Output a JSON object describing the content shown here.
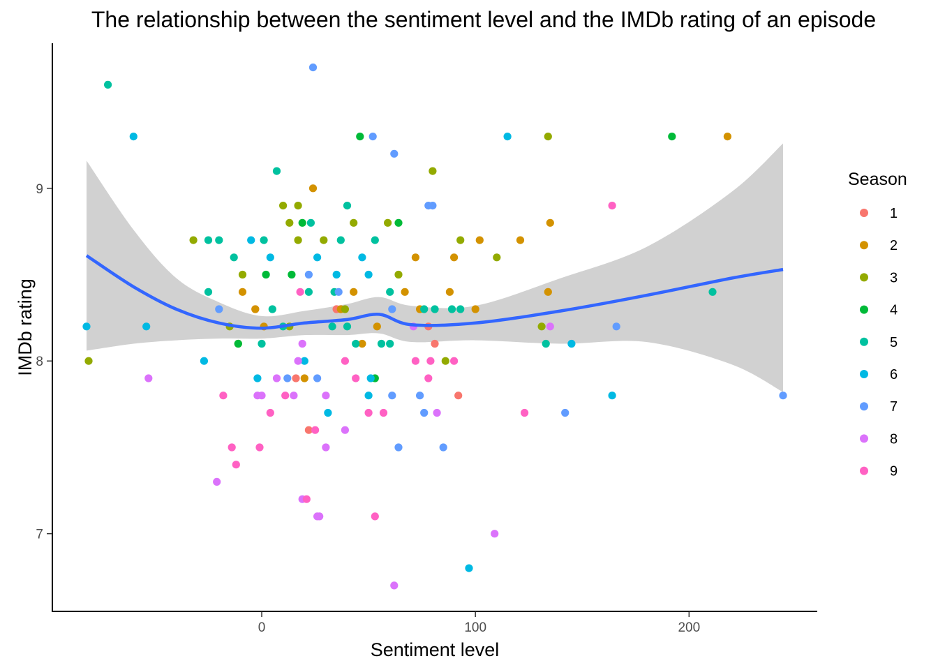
{
  "chart_data": {
    "type": "scatter",
    "title": "The relationship between the sentiment level and the IMDb rating of an episode",
    "xlabel": "Sentiment level",
    "ylabel": "IMDb rating",
    "xlim": [
      -98,
      260
    ],
    "ylim": [
      6.55,
      9.84
    ],
    "x_ticks": [
      0,
      100,
      200
    ],
    "y_ticks": [
      7,
      8,
      9
    ],
    "grid": false,
    "legend": {
      "title": "Season",
      "placement": "right",
      "entries": [
        "1",
        "2",
        "3",
        "4",
        "5",
        "6",
        "7",
        "8",
        "9"
      ]
    },
    "season_colors": {
      "1": "#F8766D",
      "2": "#D39200",
      "3": "#93AA00",
      "4": "#00BA38",
      "5": "#00C19F",
      "6": "#00B9E3",
      "7": "#619CFF",
      "8": "#DB72FB",
      "9": "#FF61C3"
    },
    "series": [
      {
        "name": "1",
        "points": [
          [
            35,
            8.3
          ],
          [
            -3,
            8.3
          ],
          [
            78,
            8.2
          ],
          [
            81,
            8.1
          ],
          [
            16,
            7.9
          ],
          [
            22,
            7.6
          ],
          [
            92,
            7.8
          ],
          [
            35,
            8.3
          ]
        ]
      },
      {
        "name": "2",
        "points": [
          [
            24,
            9.0
          ],
          [
            218,
            9.3
          ],
          [
            135,
            8.8
          ],
          [
            102,
            8.7
          ],
          [
            121,
            8.7
          ],
          [
            72,
            8.6
          ],
          [
            90,
            8.6
          ],
          [
            -9,
            8.4
          ],
          [
            43,
            8.4
          ],
          [
            67,
            8.4
          ],
          [
            88,
            8.4
          ],
          [
            134,
            8.4
          ],
          [
            -3,
            8.3
          ],
          [
            37,
            8.3
          ],
          [
            74,
            8.3
          ],
          [
            100,
            8.3
          ],
          [
            1,
            8.2
          ],
          [
            54,
            8.2
          ],
          [
            47,
            8.1
          ],
          [
            20,
            7.9
          ]
        ]
      },
      {
        "name": "3",
        "points": [
          [
            -81,
            8.0
          ],
          [
            134,
            9.3
          ],
          [
            80,
            9.1
          ],
          [
            10,
            8.9
          ],
          [
            17,
            8.9
          ],
          [
            13,
            8.8
          ],
          [
            43,
            8.8
          ],
          [
            59,
            8.8
          ],
          [
            -32,
            8.7
          ],
          [
            17,
            8.7
          ],
          [
            29,
            8.7
          ],
          [
            93,
            8.7
          ],
          [
            110,
            8.6
          ],
          [
            -9,
            8.5
          ],
          [
            64,
            8.5
          ],
          [
            39,
            8.3
          ],
          [
            -15,
            8.2
          ],
          [
            13,
            8.2
          ],
          [
            131,
            8.2
          ],
          [
            -11,
            8.1
          ],
          [
            86,
            8.0
          ]
        ]
      },
      {
        "name": "4",
        "points": [
          [
            46,
            9.3
          ],
          [
            192,
            9.3
          ],
          [
            19,
            8.8
          ],
          [
            64,
            8.8
          ],
          [
            2,
            8.5
          ],
          [
            14,
            8.5
          ],
          [
            -11,
            8.1
          ],
          [
            53,
            7.9
          ]
        ]
      },
      {
        "name": "5",
        "points": [
          [
            -72,
            9.6
          ],
          [
            7,
            9.1
          ],
          [
            40,
            8.9
          ],
          [
            23,
            8.8
          ],
          [
            -25,
            8.7
          ],
          [
            -20,
            8.7
          ],
          [
            1,
            8.7
          ],
          [
            37,
            8.7
          ],
          [
            53,
            8.7
          ],
          [
            -13,
            8.6
          ],
          [
            -25,
            8.4
          ],
          [
            22,
            8.4
          ],
          [
            34,
            8.4
          ],
          [
            60,
            8.4
          ],
          [
            5,
            8.3
          ],
          [
            76,
            8.3
          ],
          [
            81,
            8.3
          ],
          [
            89,
            8.3
          ],
          [
            93,
            8.3
          ],
          [
            10,
            8.2
          ],
          [
            33,
            8.2
          ],
          [
            40,
            8.2
          ],
          [
            0,
            8.1
          ],
          [
            44,
            8.1
          ],
          [
            56,
            8.1
          ],
          [
            60,
            8.1
          ],
          [
            133,
            8.1
          ],
          [
            211,
            8.4
          ]
        ]
      },
      {
        "name": "6",
        "points": [
          [
            -60,
            9.3
          ],
          [
            115,
            9.3
          ],
          [
            -5,
            8.7
          ],
          [
            26,
            8.6
          ],
          [
            4,
            8.6
          ],
          [
            47,
            8.6
          ],
          [
            35,
            8.5
          ],
          [
            50,
            8.5
          ],
          [
            -82,
            8.2
          ],
          [
            -54,
            8.2
          ],
          [
            145,
            8.1
          ],
          [
            -27,
            8.0
          ],
          [
            20,
            8.0
          ],
          [
            -2,
            7.9
          ],
          [
            51,
            7.9
          ],
          [
            31,
            7.7
          ],
          [
            50,
            7.8
          ],
          [
            164,
            7.8
          ],
          [
            97,
            6.8
          ]
        ]
      },
      {
        "name": "7",
        "points": [
          [
            24,
            9.7
          ],
          [
            52,
            9.3
          ],
          [
            62,
            9.2
          ],
          [
            78,
            8.9
          ],
          [
            80,
            8.9
          ],
          [
            22,
            8.5
          ],
          [
            36,
            8.4
          ],
          [
            -20,
            8.3
          ],
          [
            61,
            8.3
          ],
          [
            166,
            8.2
          ],
          [
            12,
            7.9
          ],
          [
            26,
            7.9
          ],
          [
            74,
            7.8
          ],
          [
            61,
            7.8
          ],
          [
            76,
            7.7
          ],
          [
            142,
            7.7
          ],
          [
            64,
            7.5
          ],
          [
            85,
            7.5
          ],
          [
            244,
            7.8
          ]
        ]
      },
      {
        "name": "8",
        "points": [
          [
            -53,
            7.9
          ],
          [
            7,
            7.9
          ],
          [
            -2,
            7.8
          ],
          [
            0,
            7.8
          ],
          [
            15,
            7.8
          ],
          [
            30,
            7.8
          ],
          [
            17,
            8.0
          ],
          [
            19,
            8.1
          ],
          [
            71,
            8.2
          ],
          [
            135,
            8.2
          ],
          [
            39,
            7.6
          ],
          [
            30,
            7.5
          ],
          [
            82,
            7.7
          ],
          [
            -21,
            7.3
          ],
          [
            19,
            7.2
          ],
          [
            26,
            7.1
          ],
          [
            27,
            7.1
          ],
          [
            109,
            7.0
          ],
          [
            62,
            6.7
          ]
        ]
      },
      {
        "name": "9",
        "points": [
          [
            164,
            8.9
          ],
          [
            18,
            8.4
          ],
          [
            39,
            8.0
          ],
          [
            72,
            8.0
          ],
          [
            79,
            8.0
          ],
          [
            90,
            8.0
          ],
          [
            78,
            7.9
          ],
          [
            44,
            7.9
          ],
          [
            -18,
            7.8
          ],
          [
            11,
            7.8
          ],
          [
            4,
            7.7
          ],
          [
            50,
            7.7
          ],
          [
            57,
            7.7
          ],
          [
            123,
            7.7
          ],
          [
            25,
            7.6
          ],
          [
            -14,
            7.5
          ],
          [
            -1,
            7.5
          ],
          [
            -12,
            7.4
          ],
          [
            21,
            7.2
          ],
          [
            53,
            7.1
          ]
        ]
      }
    ],
    "smooth": {
      "method": "loess",
      "color": "#3366FF",
      "ribbon_color": "#CCCCCC",
      "x": [
        -82,
        -60,
        -40,
        -20,
        0,
        20,
        40,
        55,
        70,
        100,
        140,
        180,
        220,
        244
      ],
      "y": [
        8.61,
        8.43,
        8.3,
        8.22,
        8.19,
        8.22,
        8.24,
        8.27,
        8.21,
        8.22,
        8.29,
        8.38,
        8.48,
        8.53
      ],
      "lower": [
        8.06,
        8.1,
        8.12,
        8.13,
        8.13,
        8.15,
        8.15,
        8.16,
        8.11,
        8.12,
        8.1,
        8.11,
        7.98,
        7.82
      ],
      "upper": [
        9.16,
        8.76,
        8.48,
        8.34,
        8.26,
        8.29,
        8.33,
        8.37,
        8.32,
        8.32,
        8.48,
        8.66,
        8.98,
        9.26
      ]
    }
  }
}
